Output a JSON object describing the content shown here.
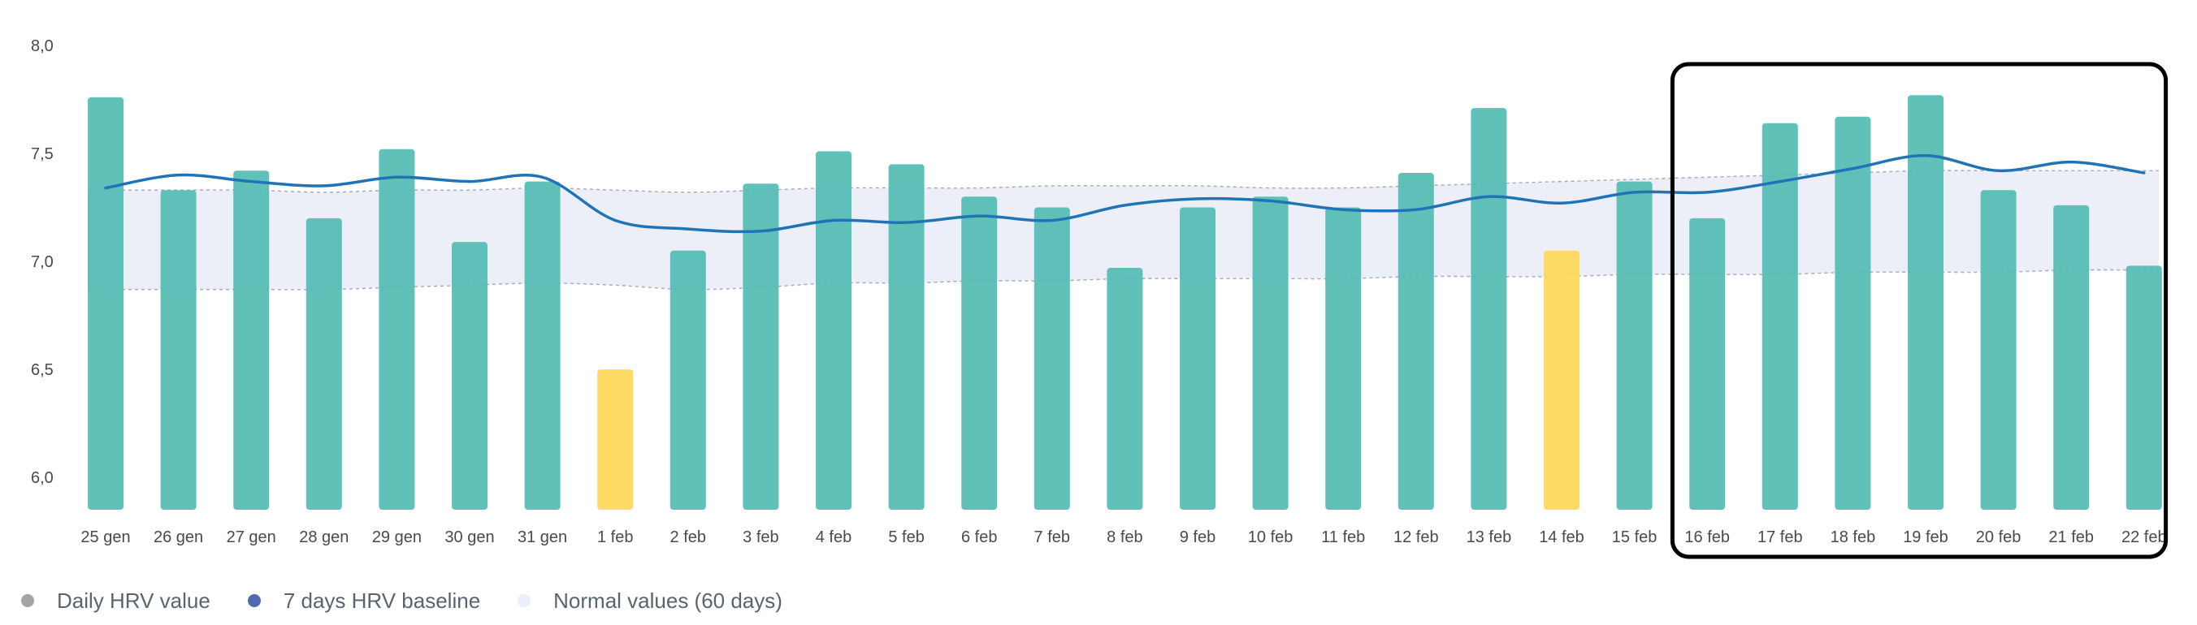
{
  "chart_data": {
    "type": "bar",
    "title": "",
    "xlabel": "",
    "ylabel": "",
    "ylim": [
      5.85,
      8.0
    ],
    "yticks": [
      "6,0",
      "6,5",
      "7,0",
      "7,5",
      "8,0"
    ],
    "ytick_values": [
      6.0,
      6.5,
      7.0,
      7.5,
      8.0
    ],
    "categories": [
      "25 gen",
      "26 gen",
      "27 gen",
      "28 gen",
      "29 gen",
      "30 gen",
      "31 gen",
      "1 feb",
      "2 feb",
      "3 feb",
      "4 feb",
      "5 feb",
      "6 feb",
      "7 feb",
      "8 feb",
      "9 feb",
      "10 feb",
      "11 feb",
      "12 feb",
      "13 feb",
      "14 feb",
      "15 feb",
      "16 feb",
      "17 feb",
      "18 feb",
      "19 feb",
      "20 feb",
      "21 feb",
      "22 feb"
    ],
    "series": [
      {
        "name": "Daily HRV value",
        "values": [
          7.76,
          7.33,
          7.42,
          7.2,
          7.52,
          7.09,
          7.37,
          6.5,
          7.05,
          7.36,
          7.51,
          7.45,
          7.3,
          7.25,
          6.97,
          7.25,
          7.3,
          7.25,
          7.41,
          7.71,
          7.05,
          7.37,
          7.2,
          7.64,
          7.67,
          7.77,
          7.33,
          7.26,
          6.98
        ]
      },
      {
        "name": "7 days HRV baseline",
        "values": [
          7.34,
          7.4,
          7.37,
          7.35,
          7.39,
          7.37,
          7.39,
          7.19,
          7.15,
          7.14,
          7.19,
          7.18,
          7.21,
          7.19,
          7.26,
          7.29,
          7.28,
          7.24,
          7.24,
          7.3,
          7.27,
          7.32,
          7.32,
          7.37,
          7.43,
          7.49,
          7.42,
          7.46,
          7.41
        ]
      },
      {
        "name": "Normal values (60 days)",
        "upper": [
          7.33,
          7.33,
          7.33,
          7.32,
          7.33,
          7.33,
          7.34,
          7.33,
          7.32,
          7.33,
          7.34,
          7.34,
          7.34,
          7.35,
          7.35,
          7.35,
          7.34,
          7.34,
          7.35,
          7.36,
          7.37,
          7.38,
          7.39,
          7.4,
          7.41,
          7.42,
          7.42,
          7.42,
          7.42
        ],
        "lower": [
          6.87,
          6.87,
          6.87,
          6.87,
          6.88,
          6.89,
          6.9,
          6.89,
          6.87,
          6.88,
          6.9,
          6.9,
          6.91,
          6.91,
          6.92,
          6.92,
          6.92,
          6.92,
          6.93,
          6.93,
          6.93,
          6.94,
          6.94,
          6.94,
          6.95,
          6.95,
          6.95,
          6.96,
          6.96
        ]
      }
    ],
    "highlighted_categories": [
      "1 feb",
      "14 feb"
    ],
    "highlight_box_categories": [
      "16 feb",
      "22 feb"
    ],
    "colors": {
      "bar": "#53bcb3",
      "bar_highlight": "#fdd95c",
      "baseline_line": "#1f73b7",
      "normal_band": "#e9ecf7",
      "normal_band_edge": "#a7a7b8",
      "highlight_box": "#000000"
    },
    "legend": {
      "placement": "bottom-left",
      "items": [
        {
          "label": "Daily HRV value",
          "color": "#a5a5a5"
        },
        {
          "label": "7 days HRV baseline",
          "color": "#4e6bb0"
        },
        {
          "label": "Normal values (60 days)",
          "color": "#eceef9"
        }
      ]
    }
  }
}
